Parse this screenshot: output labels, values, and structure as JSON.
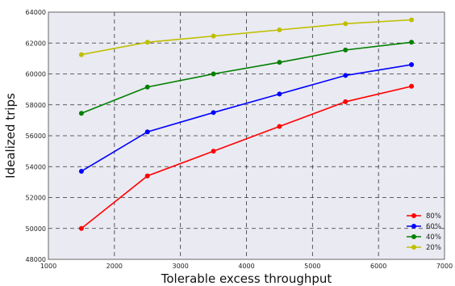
{
  "chart_data": {
    "type": "line",
    "title": "",
    "xlabel": "Tolerable excess throughput",
    "ylabel": "Idealized trips",
    "xlim": [
      1000,
      7000
    ],
    "ylim": [
      48000,
      64000
    ],
    "xticks": [
      1000,
      2000,
      3000,
      4000,
      5000,
      6000,
      7000
    ],
    "yticks": [
      48000,
      50000,
      52000,
      54000,
      56000,
      58000,
      60000,
      62000,
      64000
    ],
    "grid": true,
    "legend_position": "bottom-right",
    "x": [
      1500,
      2500,
      3500,
      4500,
      5500,
      6500
    ],
    "series": [
      {
        "name": "80%",
        "color": "#ff0000",
        "values": [
          50000,
          53400,
          55000,
          56600,
          58200,
          59200
        ]
      },
      {
        "name": "60%",
        "color": "#0000ff",
        "values": [
          53700,
          56250,
          57500,
          58700,
          59900,
          60600
        ]
      },
      {
        "name": "40%",
        "color": "#008000",
        "values": [
          57450,
          59150,
          60000,
          60750,
          61550,
          62050
        ]
      },
      {
        "name": "20%",
        "color": "#bfbf00",
        "values": [
          61250,
          62050,
          62450,
          62850,
          63250,
          63500
        ]
      }
    ]
  }
}
